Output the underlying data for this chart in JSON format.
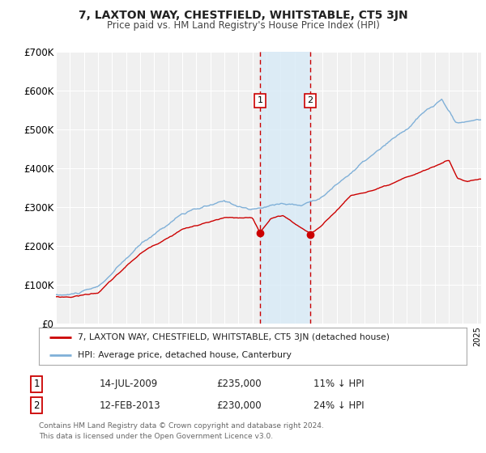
{
  "title": "7, LAXTON WAY, CHESTFIELD, WHITSTABLE, CT5 3JN",
  "subtitle": "Price paid vs. HM Land Registry's House Price Index (HPI)",
  "ylim": [
    0,
    700000
  ],
  "yticks": [
    0,
    100000,
    200000,
    300000,
    400000,
    500000,
    600000,
    700000
  ],
  "ytick_labels": [
    "£0",
    "£100K",
    "£200K",
    "£300K",
    "£400K",
    "£500K",
    "£600K",
    "£700K"
  ],
  "background_color": "#ffffff",
  "plot_bg_color": "#f0f0f0",
  "grid_color": "#ffffff",
  "sale1_date": 2009.54,
  "sale1_price": 235000,
  "sale2_date": 2013.12,
  "sale2_price": 230000,
  "legend_line1": "7, LAXTON WAY, CHESTFIELD, WHITSTABLE, CT5 3JN (detached house)",
  "legend_line2": "HPI: Average price, detached house, Canterbury",
  "table_row1": [
    "1",
    "14-JUL-2009",
    "£235,000",
    "11% ↓ HPI"
  ],
  "table_row2": [
    "2",
    "12-FEB-2013",
    "£230,000",
    "24% ↓ HPI"
  ],
  "footer": "Contains HM Land Registry data © Crown copyright and database right 2024.\nThis data is licensed under the Open Government Licence v3.0.",
  "line_color_red": "#cc0000",
  "line_color_blue": "#7fb0d8",
  "marker_color_red": "#cc0000",
  "shade_color": "#d8eaf7",
  "vline_color": "#cc0000",
  "xlim_start": 1995,
  "xlim_end": 2025.3
}
